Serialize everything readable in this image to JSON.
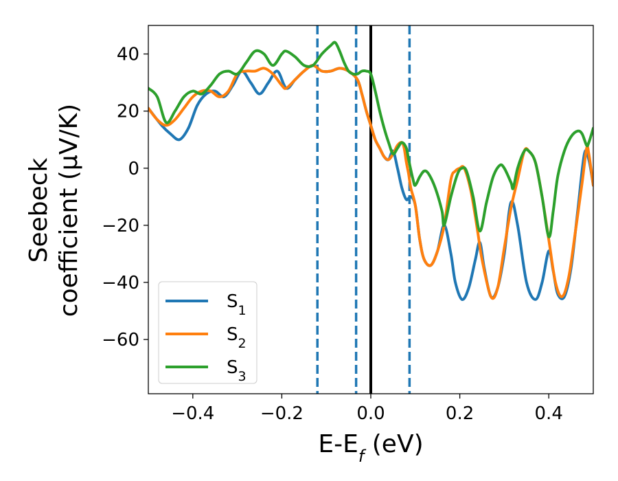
{
  "chart_data": {
    "type": "line",
    "xlabel": "E-E_f (eV)",
    "ylabel_line1": "Seebeck",
    "ylabel_line2": "coefficient  (μV/K)",
    "xlim": [
      -0.5,
      0.5
    ],
    "ylim": [
      -79,
      50
    ],
    "x_ticks": [
      -0.4,
      -0.2,
      0.0,
      0.2,
      0.4
    ],
    "x_tick_labels": [
      "−0.4",
      "−0.2",
      "0.0",
      "0.2",
      "0.4"
    ],
    "y_ticks": [
      -60,
      -40,
      -20,
      0,
      20,
      40
    ],
    "y_tick_labels": [
      "−60",
      "−40",
      "−20",
      "0",
      "20",
      "40"
    ],
    "grid": false,
    "legend_position": "lower-left",
    "vertical_lines": [
      {
        "x": -0.12,
        "style": "dashed",
        "color": "#1f77b4"
      },
      {
        "x": -0.033,
        "style": "dashed",
        "color": "#1f77b4"
      },
      {
        "x": 0.0,
        "style": "solid",
        "color": "#000000"
      },
      {
        "x": 0.087,
        "style": "dashed",
        "color": "#1f77b4"
      }
    ],
    "series": [
      {
        "name": "S1",
        "label_base": "S",
        "label_sub": "1",
        "color": "#1f77b4",
        "points": [
          [
            -0.5,
            21
          ],
          [
            -0.47,
            15
          ],
          [
            -0.45,
            12
          ],
          [
            -0.43,
            10
          ],
          [
            -0.41,
            14
          ],
          [
            -0.39,
            22
          ],
          [
            -0.37,
            26
          ],
          [
            -0.35,
            27
          ],
          [
            -0.33,
            25
          ],
          [
            -0.31,
            29
          ],
          [
            -0.29,
            34
          ],
          [
            -0.27,
            30
          ],
          [
            -0.25,
            26
          ],
          [
            -0.23,
            30
          ],
          [
            -0.21,
            34
          ],
          [
            -0.19,
            28
          ],
          [
            -0.17,
            31
          ],
          [
            -0.15,
            34
          ],
          [
            -0.13,
            36
          ],
          [
            -0.11,
            34
          ],
          [
            -0.09,
            34
          ],
          [
            -0.07,
            35
          ],
          [
            -0.05,
            34
          ],
          [
            -0.03,
            31
          ],
          [
            -0.02,
            26
          ],
          [
            -0.01,
            20
          ],
          [
            0.0,
            15
          ],
          [
            0.01,
            10
          ],
          [
            0.02,
            7
          ],
          [
            0.03,
            4
          ],
          [
            0.04,
            3
          ],
          [
            0.05,
            6
          ],
          [
            0.06,
            0
          ],
          [
            0.07,
            -7
          ],
          [
            0.08,
            -11
          ],
          [
            0.09,
            -10
          ],
          [
            0.1,
            -13
          ],
          [
            0.11,
            -25
          ],
          [
            0.12,
            -32
          ],
          [
            0.135,
            -34
          ],
          [
            0.15,
            -29
          ],
          [
            0.165,
            -20
          ],
          [
            0.18,
            -30
          ],
          [
            0.19,
            -40
          ],
          [
            0.205,
            -46
          ],
          [
            0.22,
            -42
          ],
          [
            0.235,
            -32
          ],
          [
            0.245,
            -26
          ],
          [
            0.255,
            -35
          ],
          [
            0.27,
            -45
          ],
          [
            0.285,
            -42
          ],
          [
            0.3,
            -30
          ],
          [
            0.315,
            -12
          ],
          [
            0.33,
            -20
          ],
          [
            0.35,
            -40
          ],
          [
            0.37,
            -46
          ],
          [
            0.385,
            -40
          ],
          [
            0.4,
            -29
          ],
          [
            0.41,
            -36
          ],
          [
            0.42,
            -44
          ],
          [
            0.435,
            -45
          ],
          [
            0.45,
            -35
          ],
          [
            0.465,
            -15
          ],
          [
            0.48,
            5
          ],
          [
            0.49,
            3
          ],
          [
            0.5,
            -6
          ]
        ]
      },
      {
        "name": "S2",
        "label_base": "S",
        "label_sub": "2",
        "color": "#ff7f0e",
        "points": [
          [
            -0.5,
            21
          ],
          [
            -0.48,
            17
          ],
          [
            -0.46,
            15
          ],
          [
            -0.44,
            17
          ],
          [
            -0.42,
            21
          ],
          [
            -0.4,
            25
          ],
          [
            -0.38,
            27
          ],
          [
            -0.36,
            27
          ],
          [
            -0.34,
            25
          ],
          [
            -0.32,
            27
          ],
          [
            -0.3,
            33
          ],
          [
            -0.28,
            34
          ],
          [
            -0.26,
            34
          ],
          [
            -0.24,
            35
          ],
          [
            -0.22,
            33
          ],
          [
            -0.2,
            29
          ],
          [
            -0.19,
            28
          ],
          [
            -0.17,
            31
          ],
          [
            -0.15,
            34
          ],
          [
            -0.13,
            36
          ],
          [
            -0.11,
            34
          ],
          [
            -0.09,
            34
          ],
          [
            -0.07,
            35
          ],
          [
            -0.05,
            34
          ],
          [
            -0.03,
            31
          ],
          [
            -0.02,
            26
          ],
          [
            -0.01,
            20
          ],
          [
            0.0,
            15
          ],
          [
            0.01,
            10
          ],
          [
            0.02,
            7
          ],
          [
            0.03,
            4
          ],
          [
            0.04,
            3
          ],
          [
            0.05,
            5
          ],
          [
            0.06,
            8
          ],
          [
            0.07,
            9
          ],
          [
            0.075,
            7
          ],
          [
            0.08,
            2
          ],
          [
            0.085,
            -2
          ],
          [
            0.09,
            -7
          ],
          [
            0.1,
            -13
          ],
          [
            0.11,
            -25
          ],
          [
            0.12,
            -32
          ],
          [
            0.135,
            -34
          ],
          [
            0.15,
            -29
          ],
          [
            0.165,
            -20
          ],
          [
            0.18,
            -4
          ],
          [
            0.19,
            -1
          ],
          [
            0.2,
            0
          ],
          [
            0.21,
            0
          ],
          [
            0.225,
            -8
          ],
          [
            0.24,
            -22
          ],
          [
            0.25,
            -32
          ],
          [
            0.27,
            -45
          ],
          [
            0.285,
            -42
          ],
          [
            0.3,
            -28
          ],
          [
            0.315,
            -14
          ],
          [
            0.33,
            -4
          ],
          [
            0.345,
            6
          ],
          [
            0.355,
            6
          ],
          [
            0.37,
            2
          ],
          [
            0.385,
            -10
          ],
          [
            0.4,
            -25
          ],
          [
            0.415,
            -40
          ],
          [
            0.43,
            -45
          ],
          [
            0.445,
            -38
          ],
          [
            0.46,
            -22
          ],
          [
            0.475,
            -5
          ],
          [
            0.485,
            7
          ],
          [
            0.49,
            5
          ],
          [
            0.5,
            -6
          ]
        ]
      },
      {
        "name": "S3",
        "label_base": "S",
        "label_sub": "3",
        "color": "#2ca02c",
        "points": [
          [
            -0.5,
            28
          ],
          [
            -0.48,
            25
          ],
          [
            -0.46,
            16
          ],
          [
            -0.44,
            20
          ],
          [
            -0.42,
            25
          ],
          [
            -0.4,
            27
          ],
          [
            -0.38,
            26
          ],
          [
            -0.36,
            29
          ],
          [
            -0.34,
            33
          ],
          [
            -0.32,
            34
          ],
          [
            -0.3,
            33
          ],
          [
            -0.28,
            37
          ],
          [
            -0.26,
            41
          ],
          [
            -0.24,
            40
          ],
          [
            -0.22,
            36
          ],
          [
            -0.2,
            40
          ],
          [
            -0.19,
            41
          ],
          [
            -0.17,
            39
          ],
          [
            -0.15,
            36
          ],
          [
            -0.13,
            36
          ],
          [
            -0.11,
            40
          ],
          [
            -0.09,
            43
          ],
          [
            -0.08,
            44
          ],
          [
            -0.07,
            41
          ],
          [
            -0.06,
            37
          ],
          [
            -0.05,
            34
          ],
          [
            -0.04,
            33
          ],
          [
            -0.03,
            33
          ],
          [
            -0.02,
            34
          ],
          [
            -0.01,
            34
          ],
          [
            0.0,
            33
          ],
          [
            0.01,
            27
          ],
          [
            0.02,
            20
          ],
          [
            0.03,
            14
          ],
          [
            0.04,
            9
          ],
          [
            0.05,
            5
          ],
          [
            0.06,
            7
          ],
          [
            0.07,
            9
          ],
          [
            0.08,
            7
          ],
          [
            0.085,
            3
          ],
          [
            0.095,
            -4
          ],
          [
            0.1,
            -6
          ],
          [
            0.11,
            -3
          ],
          [
            0.12,
            -1
          ],
          [
            0.13,
            -2
          ],
          [
            0.145,
            -7
          ],
          [
            0.16,
            -15
          ],
          [
            0.165,
            -20
          ],
          [
            0.18,
            -10
          ],
          [
            0.195,
            -2
          ],
          [
            0.205,
            0
          ],
          [
            0.215,
            -1
          ],
          [
            0.23,
            -10
          ],
          [
            0.245,
            -22
          ],
          [
            0.26,
            -12
          ],
          [
            0.275,
            -3
          ],
          [
            0.29,
            1
          ],
          [
            0.3,
            0
          ],
          [
            0.315,
            -5
          ],
          [
            0.32,
            -7
          ],
          [
            0.33,
            0
          ],
          [
            0.345,
            6
          ],
          [
            0.355,
            6
          ],
          [
            0.37,
            2
          ],
          [
            0.385,
            -10
          ],
          [
            0.4,
            -24
          ],
          [
            0.41,
            -15
          ],
          [
            0.42,
            -3
          ],
          [
            0.435,
            6
          ],
          [
            0.45,
            11
          ],
          [
            0.465,
            13
          ],
          [
            0.475,
            12
          ],
          [
            0.485,
            8
          ],
          [
            0.49,
            9
          ],
          [
            0.5,
            14
          ]
        ]
      }
    ]
  }
}
